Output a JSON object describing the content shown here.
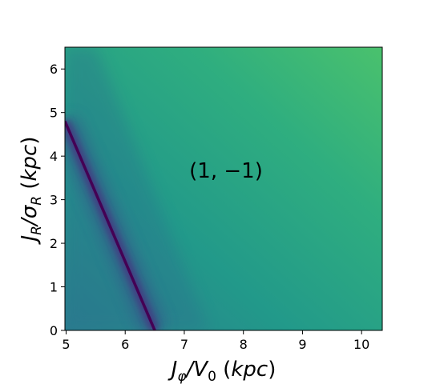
{
  "chart_data": {
    "type": "heatmap",
    "xlabel": "J_φ/V_0 (kpc)",
    "ylabel": "J_R/σ_R (kpc)",
    "xlim": [
      4.98,
      10.35
    ],
    "ylim": [
      0,
      6.5
    ],
    "x_ticks": [
      "5",
      "6",
      "7",
      "8",
      "9",
      "10"
    ],
    "y_ticks": [
      "0",
      "1",
      "2",
      "3",
      "4",
      "5",
      "6"
    ],
    "annotation": "(1, −1)",
    "resonance_line": {
      "x": [
        4.98,
        6.5
      ],
      "y": [
        4.8,
        0
      ]
    },
    "colormap": "viridis",
    "colors": {
      "low": "#440154",
      "mid": "#2a8c8b",
      "high": "#46c06e"
    }
  }
}
